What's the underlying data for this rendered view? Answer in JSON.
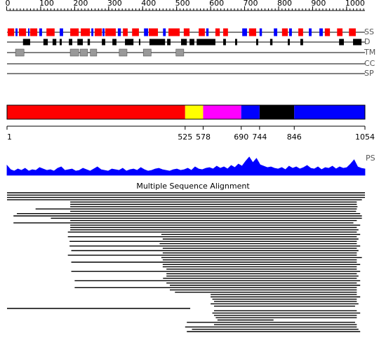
{
  "chart_data": {
    "type": "sequence-features",
    "xlim": [
      0,
      1000
    ],
    "xticks": [
      0,
      100,
      200,
      300,
      400,
      500,
      600,
      700,
      800,
      900,
      1000
    ],
    "tracks": [
      {
        "label": "SS",
        "features": [
          {
            "color": "#ff0000",
            "segments": [
              [
                3,
                22
              ],
              [
                36,
                57
              ],
              [
                69,
                90
              ],
              [
                117,
                141
              ],
              [
                187,
                212
              ],
              [
                218,
                245
              ],
              [
                259,
                280
              ],
              [
                290,
                321
              ],
              [
                342,
                356
              ],
              [
                369,
                389
              ],
              [
                418,
                445
              ],
              [
                476,
                509
              ],
              [
                521,
                538
              ],
              [
                565,
                583
              ],
              [
                614,
                627
              ],
              [
                637,
                651
              ],
              [
                713,
                734
              ],
              [
                810,
                827
              ],
              [
                858,
                872
              ],
              [
                936,
                951
              ],
              [
                972,
                988
              ],
              [
                1007,
                1027
              ]
            ]
          },
          {
            "color": "#0000ff",
            "segments": [
              [
                26,
                32
              ],
              [
                63,
                67
              ],
              [
                96,
                104
              ],
              [
                156,
                166
              ],
              [
                249,
                255
              ],
              [
                282,
                288
              ],
              [
                327,
                336
              ],
              [
                404,
                416
              ],
              [
                460,
                468
              ],
              [
                587,
                594
              ],
              [
                693,
                707
              ],
              [
                744,
                751
              ],
              [
                786,
                796
              ],
              [
                831,
                839
              ],
              [
                889,
                897
              ],
              [
                920,
                930
              ]
            ]
          }
        ]
      },
      {
        "label": "D",
        "features": [
          {
            "color": "#000000",
            "segments": [
              [
                48,
                69
              ],
              [
                108,
                121
              ],
              [
                135,
                146
              ],
              [
                156,
                162
              ],
              [
                183,
                193
              ],
              [
                208,
                224
              ],
              [
                238,
                245
              ],
              [
                280,
                290
              ],
              [
                311,
                323
              ],
              [
                348,
                373
              ],
              [
                389,
                393
              ],
              [
                420,
                466
              ],
              [
                472,
                482
              ],
              [
                513,
                530
              ],
              [
                538,
                552
              ],
              [
                559,
                614
              ],
              [
                637,
                645
              ],
              [
                672,
                678
              ],
              [
                734,
                740
              ],
              [
                775,
                782
              ],
              [
                827,
                833
              ],
              [
                864,
                872
              ],
              [
                978,
                992
              ],
              [
                1019,
                1044
              ]
            ]
          }
        ]
      },
      {
        "label": "TM",
        "features": [
          {
            "color": "#999999",
            "segments": [
              [
                26,
                51
              ],
              [
                187,
                212
              ],
              [
                216,
                238
              ],
              [
                246,
                265
              ],
              [
                331,
                354
              ],
              [
                402,
                425
              ],
              [
                498,
                521
              ]
            ]
          }
        ]
      },
      {
        "label": "CC",
        "features": []
      },
      {
        "label": "SP",
        "features": []
      }
    ],
    "domains": {
      "boundaries": [
        1,
        525,
        578,
        690,
        744,
        846,
        1054
      ],
      "colors": [
        "#ff0000",
        "#ffff00",
        "#ff00ff",
        "#0000ff",
        "#000000",
        "#0000ff"
      ]
    },
    "profile": {
      "label": "PS",
      "color": "#0000ff",
      "values": [
        14,
        8,
        6,
        9,
        7,
        10,
        6,
        8,
        7,
        11,
        9,
        7,
        8,
        6,
        10,
        12,
        7,
        8,
        9,
        6,
        7,
        10,
        8,
        6,
        9,
        12,
        8,
        7,
        6,
        9,
        8,
        7,
        10,
        6,
        8,
        9,
        7,
        11,
        8,
        6,
        7,
        9,
        10,
        8,
        7,
        6,
        8,
        9,
        7,
        8,
        10,
        7,
        12,
        9,
        8,
        10,
        11,
        9,
        13,
        10,
        12,
        9,
        14,
        11,
        16,
        13,
        20,
        26,
        18,
        24,
        15,
        13,
        11,
        12,
        10,
        9,
        11,
        8,
        13,
        10,
        12,
        9,
        11,
        14,
        10,
        9,
        12,
        8,
        11,
        10,
        13,
        9,
        12,
        10,
        11,
        16,
        22,
        12,
        10,
        9
      ]
    },
    "alignment": {
      "title": "Multiple Sequence Alignment",
      "hits": [
        [
          1,
          1054
        ],
        [
          1,
          1054
        ],
        [
          1,
          1054
        ],
        [
          1,
          1045
        ],
        [
          187,
          1030
        ],
        [
          187,
          1030
        ],
        [
          187,
          1032
        ],
        [
          85,
          1030
        ],
        [
          187,
          1028
        ],
        [
          30,
          1040
        ],
        [
          20,
          1045
        ],
        [
          130,
          1045
        ],
        [
          187,
          1030
        ],
        [
          20,
          1020
        ],
        [
          187,
          1040
        ],
        [
          187,
          1030
        ],
        [
          187,
          1035
        ],
        [
          180,
          1030
        ],
        [
          455,
          1040
        ],
        [
          180,
          1030
        ],
        [
          459,
          1035
        ],
        [
          185,
          1030
        ],
        [
          450,
          1030
        ],
        [
          185,
          1040
        ],
        [
          459,
          1030
        ],
        [
          190,
          1035
        ],
        [
          459,
          1030
        ],
        [
          180,
          1030
        ],
        [
          455,
          1045
        ],
        [
          459,
          1030
        ],
        [
          190,
          1030
        ],
        [
          459,
          1040
        ],
        [
          459,
          1030
        ],
        [
          470,
          1030
        ],
        [
          190,
          1040
        ],
        [
          470,
          1030
        ],
        [
          470,
          1035
        ],
        [
          460,
          1030
        ],
        [
          200,
          1040
        ],
        [
          470,
          1030
        ],
        [
          480,
          1040
        ],
        [
          200,
          1030
        ],
        [
          480,
          1030
        ],
        [
          495,
          1030
        ],
        [
          600,
          1030
        ],
        [
          600,
          1040
        ],
        [
          605,
          1030
        ],
        [
          610,
          1030
        ],
        [
          600,
          1035
        ],
        [
          610,
          1025
        ],
        [
          1,
          540
        ],
        [
          610,
          1030
        ],
        [
          605,
          1040
        ],
        [
          610,
          1030
        ],
        [
          615,
          1030
        ],
        [
          620,
          785
        ],
        [
          530,
          1025
        ],
        [
          610,
          1030
        ],
        [
          525,
          1030
        ],
        [
          545,
          1035
        ],
        [
          530,
          1040
        ]
      ]
    }
  }
}
